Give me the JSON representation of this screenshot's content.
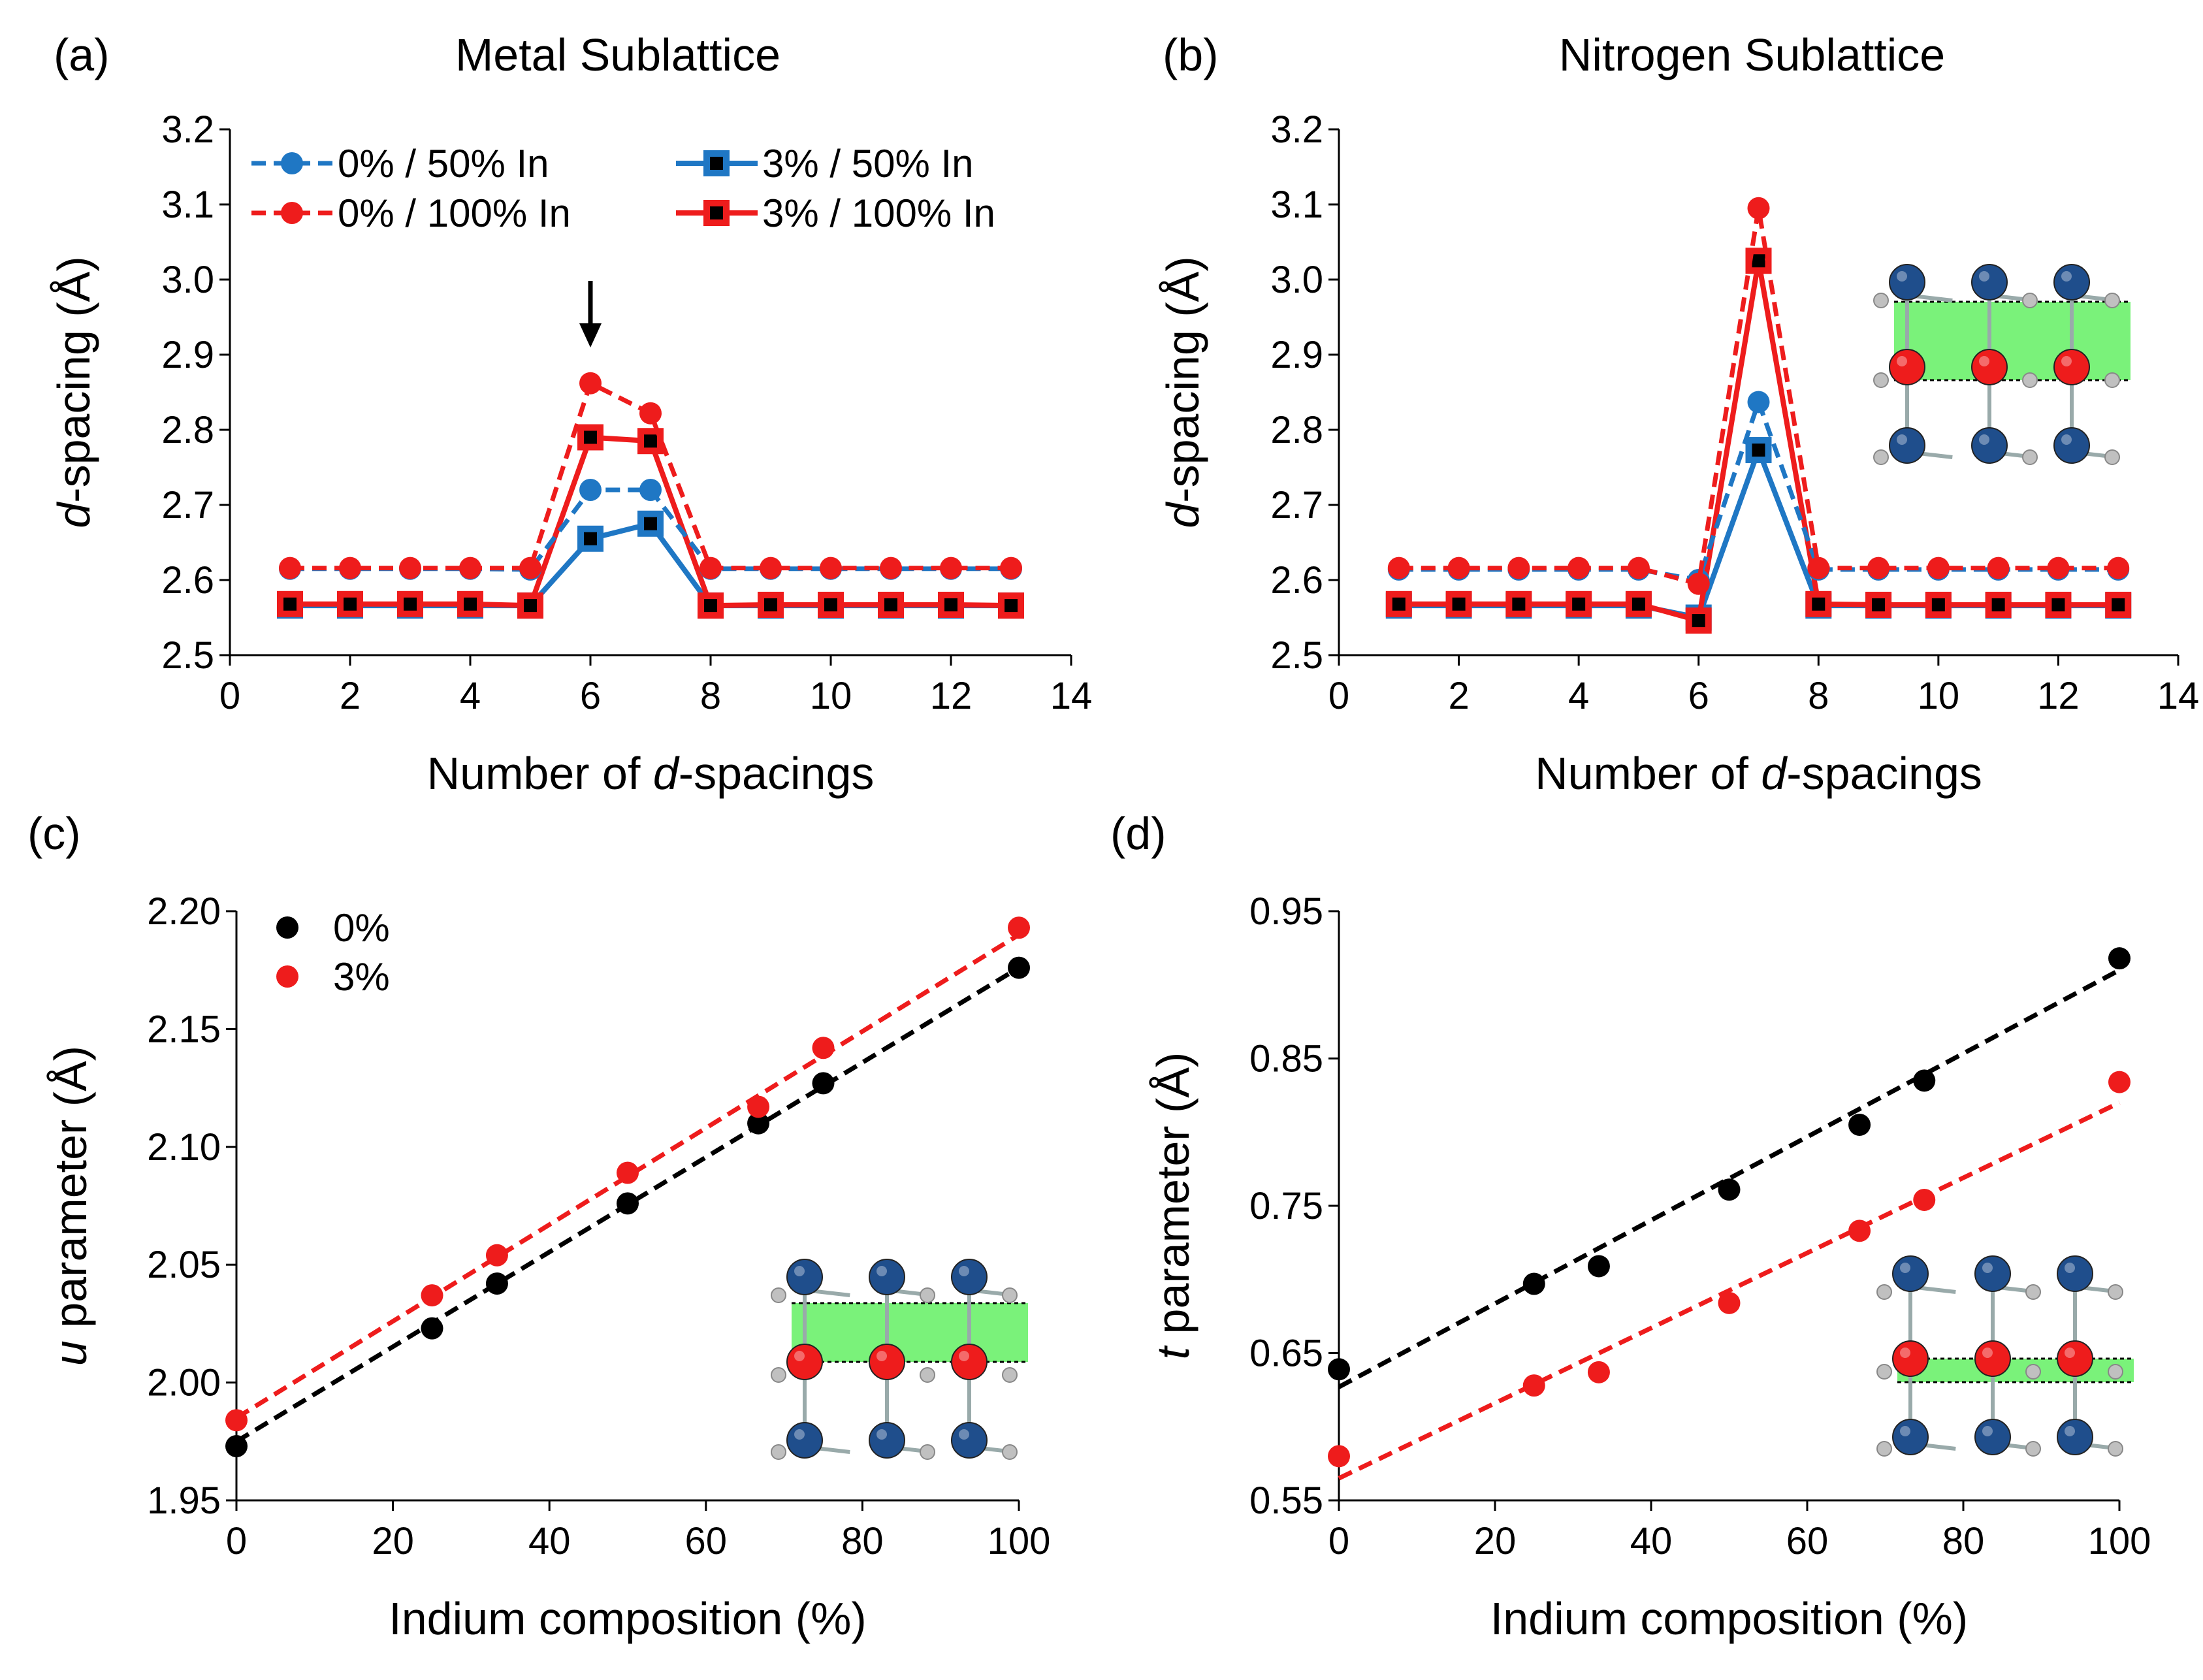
{
  "colors": {
    "blue": "#1f77c4",
    "red": "#ee1c1c",
    "black": "#000000",
    "green": "#7af27a",
    "navy": "#1f4e8c",
    "gray": "#c0c0c0"
  },
  "chart_data": [
    {
      "id": "a",
      "type": "line",
      "panel_label": "(a)",
      "title": "Metal Sublattice",
      "xlabel_prefix": "Number of ",
      "xlabel_italic": "d",
      "xlabel_suffix": "-spacings",
      "ylabel_italic": "d",
      "ylabel_suffix": "-spacing (Å)",
      "xlim": [
        0,
        14
      ],
      "ylim": [
        2.5,
        3.2
      ],
      "xticks": [
        "0",
        "2",
        "4",
        "6",
        "8",
        "10",
        "12",
        "14"
      ],
      "yticks": [
        "2.5",
        "2.6",
        "2.7",
        "2.8",
        "2.9",
        "3.0",
        "3.1",
        "3.2"
      ],
      "annotation": "arrow at x=6 pointing down",
      "series": [
        {
          "name": "0% / 50% In",
          "style": "dashed-circle",
          "color": "#1f77c4",
          "x": [
            1,
            2,
            3,
            4,
            5,
            6,
            7,
            8,
            9,
            10,
            11,
            12,
            13
          ],
          "values": [
            2.615,
            2.615,
            2.615,
            2.615,
            2.614,
            2.72,
            2.72,
            2.615,
            2.615,
            2.615,
            2.615,
            2.615,
            2.615
          ]
        },
        {
          "name": "0% / 100% In",
          "style": "dashed-circle",
          "color": "#ee1c1c",
          "x": [
            1,
            2,
            3,
            4,
            5,
            6,
            7,
            8,
            9,
            10,
            11,
            12,
            13
          ],
          "values": [
            2.616,
            2.616,
            2.616,
            2.616,
            2.616,
            2.862,
            2.822,
            2.616,
            2.616,
            2.616,
            2.616,
            2.616,
            2.616
          ]
        },
        {
          "name": "3% / 50% In",
          "style": "solid-square",
          "color": "#1f77c4",
          "x": [
            1,
            2,
            3,
            4,
            5,
            6,
            7,
            8,
            9,
            10,
            11,
            12,
            13
          ],
          "values": [
            2.566,
            2.566,
            2.566,
            2.566,
            2.566,
            2.655,
            2.675,
            2.566,
            2.566,
            2.566,
            2.566,
            2.566,
            2.566
          ]
        },
        {
          "name": "3% / 100% In",
          "style": "solid-square",
          "color": "#ee1c1c",
          "x": [
            1,
            2,
            3,
            4,
            5,
            6,
            7,
            8,
            9,
            10,
            11,
            12,
            13
          ],
          "values": [
            2.568,
            2.568,
            2.568,
            2.568,
            2.566,
            2.79,
            2.785,
            2.566,
            2.567,
            2.567,
            2.567,
            2.567,
            2.566
          ]
        }
      ]
    },
    {
      "id": "b",
      "type": "line",
      "panel_label": "(b)",
      "title": "Nitrogen Sublattice",
      "xlabel_prefix": "Number of ",
      "xlabel_italic": "d",
      "xlabel_suffix": "-spacings",
      "ylabel_italic": "d",
      "ylabel_suffix": "-spacing (Å)",
      "xlim": [
        0,
        14
      ],
      "ylim": [
        2.5,
        3.2
      ],
      "xticks": [
        "0",
        "2",
        "4",
        "6",
        "8",
        "10",
        "12",
        "14"
      ],
      "yticks": [
        "2.5",
        "2.6",
        "2.7",
        "2.8",
        "2.9",
        "3.0",
        "3.1",
        "3.2"
      ],
      "series": [
        {
          "name": "0% / 50% In",
          "style": "dashed-circle",
          "color": "#1f77c4",
          "x": [
            1,
            2,
            3,
            4,
            5,
            6,
            7,
            8,
            9,
            10,
            11,
            12,
            13
          ],
          "values": [
            2.614,
            2.614,
            2.614,
            2.614,
            2.614,
            2.6,
            2.837,
            2.614,
            2.614,
            2.614,
            2.614,
            2.614,
            2.614
          ]
        },
        {
          "name": "0% / 100% In",
          "style": "dashed-circle",
          "color": "#ee1c1c",
          "x": [
            1,
            2,
            3,
            4,
            5,
            6,
            7,
            8,
            9,
            10,
            11,
            12,
            13
          ],
          "values": [
            2.616,
            2.616,
            2.616,
            2.616,
            2.616,
            2.595,
            3.095,
            2.616,
            2.616,
            2.616,
            2.616,
            2.616,
            2.616
          ]
        },
        {
          "name": "3% / 50% In",
          "style": "solid-square",
          "color": "#1f77c4",
          "x": [
            1,
            2,
            3,
            4,
            5,
            6,
            7,
            8,
            9,
            10,
            11,
            12,
            13
          ],
          "values": [
            2.566,
            2.566,
            2.566,
            2.566,
            2.566,
            2.55,
            2.773,
            2.566,
            2.566,
            2.566,
            2.566,
            2.566,
            2.566
          ]
        },
        {
          "name": "3% / 100% In",
          "style": "solid-square",
          "color": "#ee1c1c",
          "x": [
            1,
            2,
            3,
            4,
            5,
            6,
            7,
            8,
            9,
            10,
            11,
            12,
            13
          ],
          "values": [
            2.568,
            2.568,
            2.568,
            2.568,
            2.568,
            2.546,
            3.025,
            2.568,
            2.567,
            2.567,
            2.567,
            2.567,
            2.567
          ]
        }
      ]
    },
    {
      "id": "c",
      "type": "scatter",
      "panel_label": "(c)",
      "title": "",
      "xlabel_text": "Indium composition (%)",
      "ylabel_italic": "u",
      "ylabel_suffix": " parameter (Å)",
      "xlim": [
        0,
        100
      ],
      "ylim": [
        1.95,
        2.2
      ],
      "xticks": [
        "0",
        "20",
        "40",
        "60",
        "80",
        "100"
      ],
      "yticks": [
        "1.95",
        "2.00",
        "2.05",
        "2.10",
        "2.15",
        "2.20"
      ],
      "series": [
        {
          "name": "0%",
          "color": "#000000",
          "x": [
            0,
            25,
            33.3,
            50,
            66.7,
            75,
            100
          ],
          "values": [
            1.973,
            2.023,
            2.042,
            2.076,
            2.11,
            2.127,
            2.176
          ],
          "fit": [
            1.975,
            2.176
          ]
        },
        {
          "name": "3%",
          "color": "#ee1c1c",
          "x": [
            0,
            25,
            33.3,
            50,
            66.7,
            75,
            100
          ],
          "values": [
            1.984,
            2.037,
            2.054,
            2.089,
            2.117,
            2.142,
            2.193
          ],
          "fit": [
            1.985,
            2.19
          ]
        }
      ]
    },
    {
      "id": "d",
      "type": "scatter",
      "panel_label": "(d)",
      "title": "",
      "xlabel_text": "Indium composition (%)",
      "ylabel_italic": "t",
      "ylabel_suffix": " parameter (Å)",
      "xlim": [
        0,
        100
      ],
      "ylim": [
        0.55,
        0.95
      ],
      "xticks": [
        "0",
        "20",
        "40",
        "60",
        "80",
        "100"
      ],
      "yticks": [
        "0.55",
        "0.65",
        "0.75",
        "0.85",
        "0.95"
      ],
      "series": [
        {
          "name": "0%",
          "color": "#000000",
          "x": [
            0,
            25,
            33.3,
            50,
            66.7,
            75,
            100
          ],
          "values": [
            0.639,
            0.697,
            0.709,
            0.761,
            0.805,
            0.835,
            0.918
          ],
          "fit": [
            0.627,
            0.91
          ]
        },
        {
          "name": "3%",
          "color": "#ee1c1c",
          "x": [
            0,
            25,
            33.3,
            50,
            66.7,
            75,
            100
          ],
          "values": [
            0.58,
            0.628,
            0.637,
            0.684,
            0.733,
            0.754,
            0.834
          ],
          "fit": [
            0.565,
            0.82
          ]
        }
      ]
    }
  ]
}
